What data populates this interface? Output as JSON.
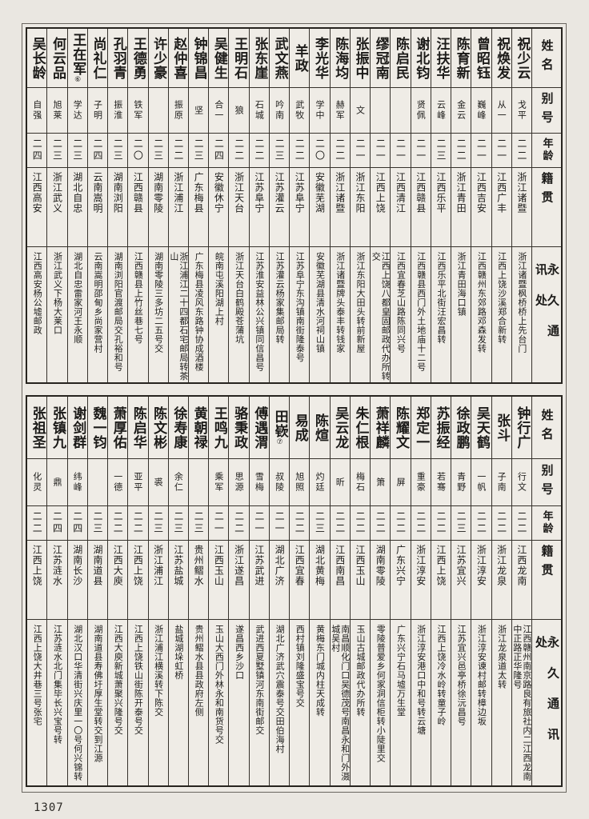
{
  "page": {
    "number": "1307"
  },
  "headers": {
    "name": "姓名",
    "alias": "别号",
    "age": "年龄",
    "native": "籍贯",
    "address": "永久通讯处"
  },
  "sections": [
    {
      "entries": [
        {
          "name": "祝少云",
          "mark": "",
          "alias": "戈平",
          "age": "二二",
          "native": "浙江诸暨",
          "address": "浙江诸暨枫桥桥上先台门"
        },
        {
          "name": "祝焕发",
          "mark": "",
          "alias": "从一",
          "age": "二一",
          "native": "江西广丰",
          "address": "江西上饶沙溪郑合新转"
        },
        {
          "name": "曾昭钰",
          "mark": "",
          "alias": "巍峰",
          "age": "二一",
          "native": "江西吉安",
          "address": "江西赣州东郊路邓森发转"
        },
        {
          "name": "陈育新",
          "mark": "",
          "alias": "金云",
          "age": "二二",
          "native": "浙江青田",
          "address": "浙江青田海口镇"
        },
        {
          "name": "汪扶华",
          "mark": "",
          "alias": "云峰",
          "age": "二三",
          "native": "江西乐平",
          "address": "江西乐平北街汪宏昌转"
        },
        {
          "name": "谢北钧",
          "mark": "",
          "alias": "贤佩",
          "age": "二一",
          "native": "江西赣县",
          "address": "江西赣县西门外土地庙十二号"
        },
        {
          "name": "陈启民",
          "mark": "",
          "alias": "",
          "age": "二一",
          "native": "江西清江",
          "address": "江西宜春芝山路陈同兴号"
        },
        {
          "name": "缪冠南",
          "mark": "",
          "alias": "",
          "age": "二一",
          "native": "江西上饶",
          "address": "江西上饶八都皇固邮政代办所转交"
        },
        {
          "name": "张振中",
          "mark": "",
          "alias": "文",
          "age": "二一",
          "native": "浙江东阳",
          "address": "浙江东阳大田头转前新屋"
        },
        {
          "name": "陈海均",
          "mark": "",
          "alias": "赫军",
          "age": "二二",
          "native": "浙江诸暨",
          "address": "浙江诸暨牌头泰丰转钱家"
        },
        {
          "name": "李光华",
          "mark": "",
          "alias": "学中",
          "age": "二〇",
          "native": "安徽芜湖",
          "address": "安徽芜湖县清水河祠山镇"
        },
        {
          "name": "羊政",
          "mark": "",
          "alias": "武牧",
          "age": "二二",
          "native": "江苏阜宁",
          "address": "江苏阜宁东沟镇南街隆泰号"
        },
        {
          "name": "武文燕",
          "mark": "",
          "alias": "吟南",
          "age": "二三",
          "native": "江苏灌云",
          "address": "江苏灌云杨家集邮局转"
        },
        {
          "name": "张东崖",
          "mark": "",
          "alias": "石城",
          "age": "二二",
          "native": "江苏阜宁",
          "address": "江苏淮安益林公兴镇同信昌号"
        },
        {
          "name": "王明石",
          "mark": "",
          "alias": "狼",
          "age": "二二",
          "native": "浙江天台",
          "address": "浙江天台白鹤殿苍蒲坑"
        },
        {
          "name": "吴健生",
          "mark": "",
          "alias": "合一",
          "age": "二四",
          "native": "安徽休宁",
          "address": "皖南屯溪阳湖上村"
        },
        {
          "name": "钟锦昌",
          "mark": "",
          "alias": "坚",
          "age": "二三",
          "native": "广东梅县",
          "address": "广东梅县凌风东路钟协成酒楼"
        },
        {
          "name": "赵仲喜",
          "mark": "",
          "alias": "振原",
          "age": "二二",
          "native": "浙江浦江",
          "address": "浙江浦江二十四都石宅邮局转茶山"
        },
        {
          "name": "许少豪",
          "mark": "",
          "alias": "",
          "age": "二三",
          "native": "湖南零陵",
          "address": "湖南零陵三多坊二五号交"
        },
        {
          "name": "王德勇",
          "mark": "",
          "alias": "铁军",
          "age": "二〇",
          "native": "江西赣县",
          "address": "江西赣县上竹丝巷七号"
        },
        {
          "name": "孔羽青",
          "mark": "",
          "alias": "振淮",
          "age": "二三",
          "native": "湖南浏阳",
          "address": "湖南浏阳官渡邮局交孔裕和号"
        },
        {
          "name": "尚礼仁",
          "mark": "",
          "alias": "子明",
          "age": "二四",
          "native": "云南嵩明",
          "address": "云南嵩明邵甸乡尚家营村"
        },
        {
          "name": "王在军",
          "mark": "⑥",
          "alias": "学达",
          "age": "二三",
          "native": "湖北自忠",
          "address": "湖北自忠雷家河王永顺"
        },
        {
          "name": "何云品",
          "mark": "",
          "alias": "旭莱",
          "age": "二三",
          "native": "浙江武义",
          "address": "浙江武义下杨大莱口"
        },
        {
          "name": "吴长龄",
          "mark": "",
          "alias": "自强",
          "age": "二四",
          "native": "江西高安",
          "address": "江西高安杨公墟邮政"
        }
      ]
    },
    {
      "entries": [
        {
          "name": "钟行广",
          "mark": "",
          "alias": "行文",
          "age": "二二",
          "native": "江西龙南",
          "address": "江西赣州南京路良有旅社内二江西龙南中正路正华隆号"
        },
        {
          "name": "张斗",
          "mark": "",
          "alias": "子南",
          "age": "二二",
          "native": "浙江龙泉",
          "address": "浙江龙泉道太转"
        },
        {
          "name": "吴天鹤",
          "mark": "",
          "alias": "一帆",
          "age": "二二",
          "native": "浙江淳安",
          "address": "浙江淳安谏村邮转樟边坂"
        },
        {
          "name": "徐政鹏",
          "mark": "",
          "alias": "青野",
          "age": "二三",
          "native": "江苏宜兴",
          "address": "江苏宜兴邑亭桥徐沅昌号"
        },
        {
          "name": "苏振经",
          "mark": "",
          "alias": "若骞",
          "age": "二二",
          "native": "江西上饶",
          "address": "江西上饶冷水岭转童子岭"
        },
        {
          "name": "郑定一",
          "mark": "",
          "alias": "重豪",
          "age": "二二",
          "native": "浙江淳安",
          "address": "浙江淳安港口中和号转云塘"
        },
        {
          "name": "陈耀文",
          "mark": "",
          "alias": "屏",
          "age": "二二",
          "native": "广东兴宁",
          "address": "广东兴宁石马墟万生堂"
        },
        {
          "name": "萧祥麟",
          "mark": "",
          "alias": "箫",
          "age": "二二",
          "native": "湖南零陵",
          "address": "零陵普爱乡何家洞信柜转小陡里交"
        },
        {
          "name": "朱仁根",
          "mark": "",
          "alias": "梅石",
          "age": "二二",
          "native": "江西玉山",
          "address": "玉山古城邮政代办所转"
        },
        {
          "name": "吴云龙",
          "mark": "",
          "alias": "昕",
          "age": "二二",
          "native": "江西南昌",
          "address": "南昌顺化门口吴德茂号南昌永和门外滠城吴村"
        },
        {
          "name": "陈煊",
          "mark": "",
          "alias": "灼廷",
          "age": "二三",
          "native": "湖北黄梅",
          "address": "黄梅东门城内柱天成转"
        },
        {
          "name": "易成",
          "mark": "",
          "alias": "旭照",
          "age": "二二",
          "native": "江西宜春",
          "address": "西村镇刘隆盛宝号交"
        },
        {
          "name": "田嵚",
          "mark": "⑦",
          "alias": "叔陵",
          "age": "二一",
          "native": "湖北广济",
          "address": "湖北广济武穴震泰号交田伯海村"
        },
        {
          "name": "傅遇渭",
          "mark": "",
          "alias": "雪梅",
          "age": "二一",
          "native": "江苏武进",
          "address": "武进西夏墅镇河东南街邮交"
        },
        {
          "name": "骆秉政",
          "mark": "",
          "alias": "思源",
          "age": "二二",
          "native": "浙江遂昌",
          "address": "遂昌西乡沙口"
        },
        {
          "name": "王鸣九",
          "mark": "",
          "alias": "乘军",
          "age": "二一",
          "native": "江西玉山",
          "address": "玉山大西门外林永和南货号交"
        },
        {
          "name": "黄朝禄",
          "mark": "",
          "alias": "",
          "age": "二三",
          "native": "贵州鳛水",
          "address": "贵州鳛水县县政府左侧"
        },
        {
          "name": "徐寿康",
          "mark": "",
          "alias": "余仁",
          "age": "二三",
          "native": "江苏盐城",
          "address": "盐城湖垛虹桥"
        },
        {
          "name": "陈文彬",
          "mark": "",
          "alias": "裘",
          "age": "二三",
          "native": "浙江浦江",
          "address": "浙江浦江横溪转下陈交"
        },
        {
          "name": "陈启华",
          "mark": "",
          "alias": "亚平",
          "age": "二二",
          "native": "江西上饶",
          "address": "江西上饶铁山街陈开泰号交"
        },
        {
          "name": "萧厚佑",
          "mark": "",
          "alias": "一德",
          "age": "二二",
          "native": "江西大庾",
          "address": "江西大庾新城萧聚兴隆号交"
        },
        {
          "name": "魏一钧",
          "mark": "",
          "alias": "",
          "age": "二三",
          "native": "湖南道县",
          "address": "湖南道县寿佛圩厚生堂转交到江源"
        },
        {
          "name": "谢剑群",
          "mark": "",
          "alias": "纬峰",
          "age": "二四",
          "native": "湖南长沙",
          "address": "湖北汉口华清街兴庆里一〇号何兴锦转"
        },
        {
          "name": "张镇九",
          "mark": "",
          "alias": "鼎",
          "age": "二四",
          "native": "江苏涟水",
          "address": "江苏涟水北门集毕长兴宝号转"
        },
        {
          "name": "张祖圣",
          "mark": "",
          "alias": "化灵",
          "age": "二二",
          "native": "江西上饶",
          "address": "江西上饶大井巷三号张宅"
        }
      ]
    }
  ]
}
